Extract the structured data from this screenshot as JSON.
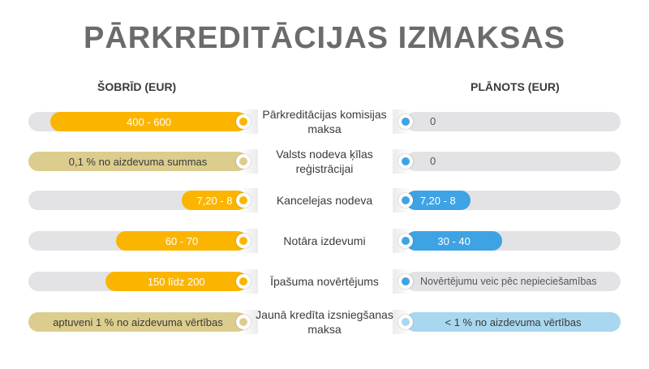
{
  "title": "PĀRKREDITĀCIJAS IZMAKSAS",
  "left_header": "ŠOBRĪD (EUR)",
  "right_header": "PLĀNOTS (EUR)",
  "colors": {
    "orange": "#fbb500",
    "tan": "#dccd8e",
    "blue": "#3ea3e4",
    "light_blue": "#a8d7ef",
    "track": "#e3e3e6"
  },
  "chart_data": {
    "type": "bar",
    "title": "PĀRKREDITĀCIJAS IZMAKSAS",
    "series": [
      {
        "name": "ŠOBRĪD (EUR)"
      },
      {
        "name": "PLĀNOTS (EUR)"
      }
    ],
    "rows": [
      {
        "label": "Pārkreditācijas komisijas maksa",
        "current": "400 - 600",
        "current_fill": 0.9,
        "current_color": "orange",
        "planned": "0",
        "planned_fill": 0,
        "planned_color": "blue"
      },
      {
        "label": "Valsts nodeva ķīlas reģistrācijai",
        "current": "0,1 % no aizdevuma summas",
        "current_fill": 1.0,
        "current_color": "tan",
        "planned": "0",
        "planned_fill": 0,
        "planned_color": "blue"
      },
      {
        "label": "Kancelejas nodeva",
        "current": "7,20 - 8",
        "current_fill": 0.3,
        "current_color": "orange",
        "planned": "7,20 - 8",
        "planned_fill": 0.3,
        "planned_color": "blue"
      },
      {
        "label": "Notāra izdevumi",
        "current": "60 - 70",
        "current_fill": 0.6,
        "current_color": "orange",
        "planned": "30 - 40",
        "planned_fill": 0.45,
        "planned_color": "blue"
      },
      {
        "label": "Īpašuma novērtējums",
        "current": "150 līdz 200",
        "current_fill": 0.65,
        "current_color": "orange",
        "planned": "Novērtējumu veic pēc nepieciešamības",
        "planned_fill": 0,
        "planned_color": "blue"
      },
      {
        "label": "Jaunā kredīta izsniegšanas maksa",
        "current": "aptuveni 1 % no aizdevuma vērtības",
        "current_fill": 1.0,
        "current_color": "tan",
        "planned": "< 1 % no aizdevuma vērtības",
        "planned_fill": 1.0,
        "planned_color": "light_blue"
      }
    ]
  }
}
